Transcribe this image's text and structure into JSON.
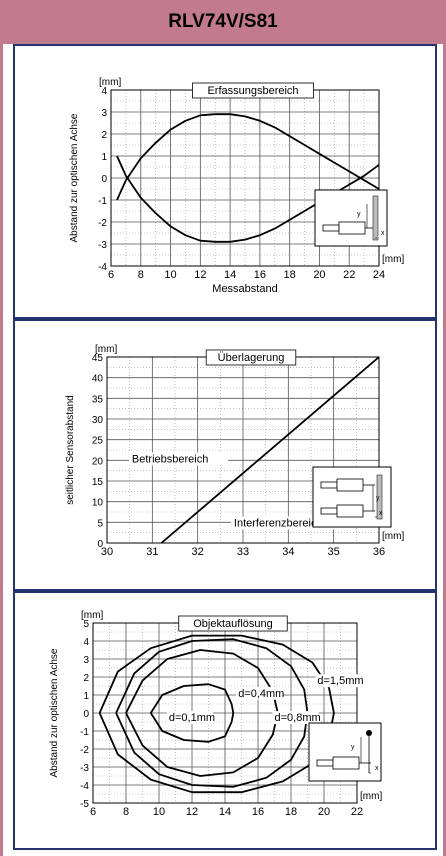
{
  "header": {
    "title": "RLV74V/S81"
  },
  "chart_data": [
    {
      "type": "line",
      "title": "Erfassungsbereich",
      "xlabel": "Messabstand",
      "ylabel": "Abstand zur optischen Achse",
      "x_unit": "[mm]",
      "y_unit": "[mm]",
      "xlim": [
        6,
        24
      ],
      "ylim": [
        -4,
        4
      ],
      "xticks": [
        6,
        8,
        10,
        12,
        14,
        16,
        18,
        20,
        22,
        24
      ],
      "yticks": [
        -4,
        -3,
        -2,
        -1,
        0,
        1,
        2,
        3,
        4
      ],
      "grid": true,
      "series": [
        {
          "points": [
            [
              6.4,
              -1.0
            ],
            [
              7.0,
              -0.1
            ],
            [
              8.0,
              0.9
            ],
            [
              9.0,
              1.6
            ],
            [
              10.0,
              2.2
            ],
            [
              11.0,
              2.6
            ],
            [
              12.0,
              2.85
            ],
            [
              13.0,
              2.9
            ],
            [
              14.0,
              2.9
            ],
            [
              15.0,
              2.8
            ],
            [
              16.0,
              2.6
            ],
            [
              17.0,
              2.3
            ],
            [
              18.0,
              1.9
            ],
            [
              19.0,
              1.5
            ],
            [
              20.0,
              1.1
            ],
            [
              21.0,
              0.7
            ],
            [
              22.0,
              0.3
            ],
            [
              23.0,
              -0.1
            ],
            [
              24.0,
              -0.5
            ]
          ]
        },
        {
          "points": [
            [
              6.4,
              1.0
            ],
            [
              7.0,
              0.1
            ],
            [
              8.0,
              -0.9
            ],
            [
              9.0,
              -1.6
            ],
            [
              10.0,
              -2.2
            ],
            [
              11.0,
              -2.6
            ],
            [
              12.0,
              -2.85
            ],
            [
              13.0,
              -2.9
            ],
            [
              14.0,
              -2.9
            ],
            [
              15.0,
              -2.8
            ],
            [
              16.0,
              -2.6
            ],
            [
              17.0,
              -2.3
            ],
            [
              18.0,
              -1.9
            ],
            [
              19.0,
              -1.5
            ],
            [
              20.0,
              -1.1
            ],
            [
              21.0,
              -0.7
            ],
            [
              22.0,
              -0.3
            ],
            [
              23.0,
              0.1
            ],
            [
              24.0,
              0.6
            ]
          ]
        }
      ]
    },
    {
      "type": "line",
      "title": "Überlagerung",
      "ylabel": "seitlicher Sensorabstand",
      "x_unit": "[mm]",
      "y_unit": "[mm]",
      "xlim": [
        30,
        36
      ],
      "ylim": [
        0,
        45
      ],
      "xticks": [
        30,
        31,
        32,
        33,
        34,
        35,
        36
      ],
      "yticks": [
        0,
        5,
        10,
        15,
        20,
        25,
        30,
        35,
        40,
        45
      ],
      "grid": true,
      "series": [
        {
          "points": [
            [
              31.2,
              0
            ],
            [
              36.0,
              45
            ]
          ]
        }
      ],
      "annotations": [
        "Betriebsbereich",
        "Interferenzbereich"
      ]
    },
    {
      "type": "line",
      "title": "Objektauflösung",
      "ylabel": "Abstand zur optischen Achse",
      "x_unit": "[mm]",
      "y_unit": "[mm]",
      "xlim": [
        6,
        22
      ],
      "ylim": [
        -5,
        5
      ],
      "xticks": [
        6,
        8,
        10,
        12,
        14,
        16,
        18,
        20,
        22
      ],
      "yticks": [
        -5,
        -4,
        -3,
        -2,
        -1,
        0,
        1,
        2,
        3,
        4,
        5
      ],
      "grid": true,
      "series": [
        {
          "name": "d=0,1mm",
          "points": [
            [
              9.5,
              0
            ],
            [
              10.2,
              1.0
            ],
            [
              11.5,
              1.5
            ],
            [
              13.0,
              1.6
            ],
            [
              14.0,
              1.3
            ],
            [
              14.4,
              0.5
            ],
            [
              14.5,
              0
            ],
            [
              14.4,
              -0.5
            ],
            [
              14.0,
              -1.3
            ],
            [
              13.0,
              -1.6
            ],
            [
              11.5,
              -1.5
            ],
            [
              10.2,
              -1.0
            ],
            [
              9.5,
              0
            ]
          ]
        },
        {
          "name": "d=0,4mm",
          "points": [
            [
              8.0,
              0
            ],
            [
              9.0,
              1.8
            ],
            [
              10.5,
              3.0
            ],
            [
              12.5,
              3.5
            ],
            [
              14.5,
              3.3
            ],
            [
              16.0,
              2.5
            ],
            [
              16.9,
              1.2
            ],
            [
              17.2,
              0
            ],
            [
              16.9,
              -1.2
            ],
            [
              16.0,
              -2.5
            ],
            [
              14.5,
              -3.3
            ],
            [
              12.5,
              -3.5
            ],
            [
              10.5,
              -3.0
            ],
            [
              9.0,
              -1.8
            ],
            [
              8.0,
              0
            ]
          ]
        },
        {
          "name": "d=0,8mm",
          "points": [
            [
              7.4,
              0
            ],
            [
              8.5,
              2.2
            ],
            [
              10.0,
              3.4
            ],
            [
              12.0,
              4.0
            ],
            [
              14.5,
              4.1
            ],
            [
              16.5,
              3.6
            ],
            [
              18.0,
              2.6
            ],
            [
              18.8,
              1.3
            ],
            [
              19.0,
              0
            ],
            [
              18.8,
              -1.3
            ],
            [
              18.0,
              -2.6
            ],
            [
              16.5,
              -3.6
            ],
            [
              14.5,
              -4.1
            ],
            [
              12.0,
              -4.0
            ],
            [
              10.0,
              -3.4
            ],
            [
              8.5,
              -2.2
            ],
            [
              7.4,
              0
            ]
          ]
        },
        {
          "name": "d=1,5mm",
          "points": [
            [
              6.4,
              0
            ],
            [
              7.5,
              2.3
            ],
            [
              9.5,
              3.6
            ],
            [
              12.0,
              4.3
            ],
            [
              15.0,
              4.3
            ],
            [
              17.5,
              3.8
            ],
            [
              19.3,
              2.8
            ],
            [
              20.3,
              1.4
            ],
            [
              20.6,
              0
            ],
            [
              20.3,
              -1.4
            ],
            [
              19.3,
              -2.8
            ],
            [
              17.5,
              -3.8
            ],
            [
              15.0,
              -4.4
            ],
            [
              12.0,
              -4.4
            ],
            [
              9.5,
              -3.7
            ],
            [
              7.5,
              -2.3
            ],
            [
              6.4,
              0
            ]
          ]
        }
      ]
    }
  ]
}
